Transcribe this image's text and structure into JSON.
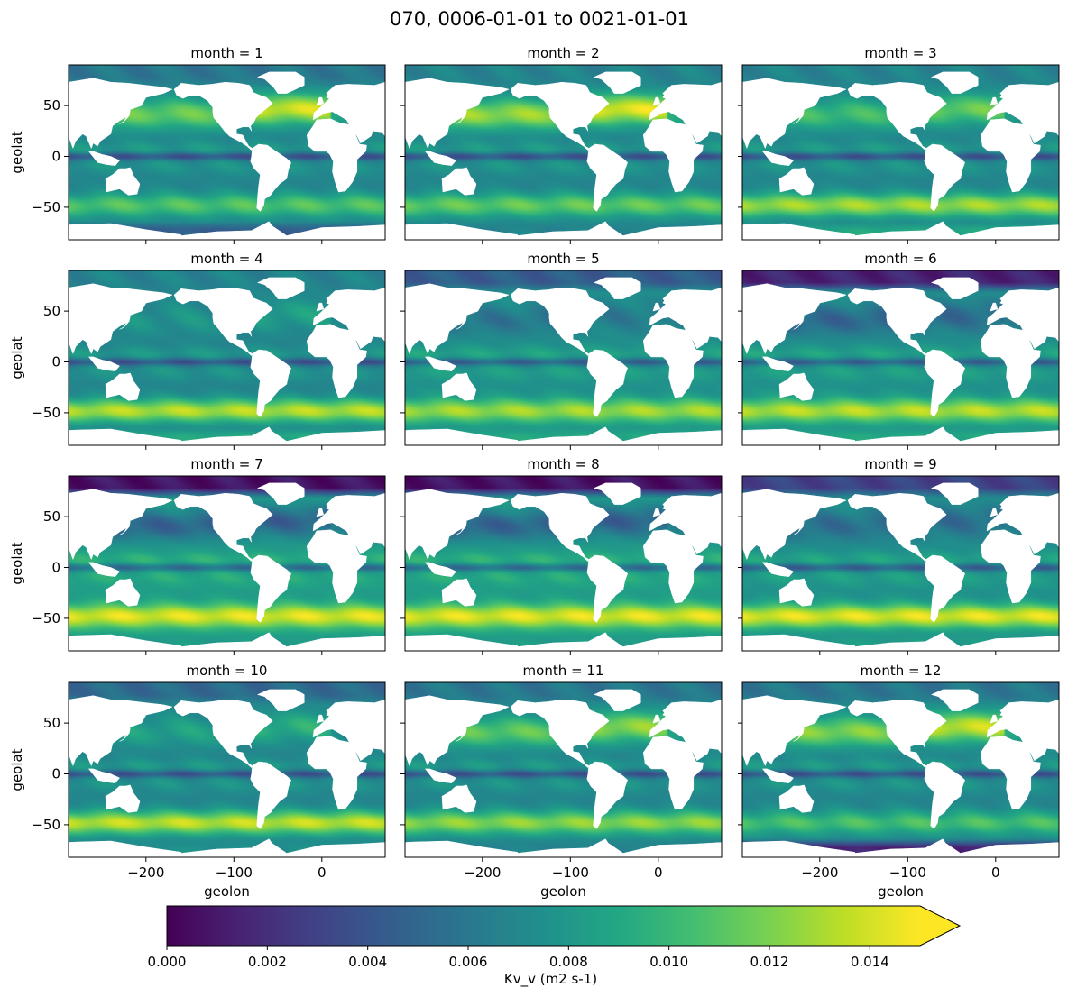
{
  "chart_data": {
    "type": "heatmap",
    "title": "070, 0006-01-01 to 0021-01-01",
    "xlabel": "geolon",
    "ylabel": "geolat",
    "xlim": [
      -288,
      72
    ],
    "ylim": [
      -82,
      90
    ],
    "x_ticks": [
      -200,
      -100,
      0
    ],
    "y_ticks": [
      50,
      0,
      -50
    ],
    "x_tick_labels": [
      "−200",
      "−100",
      "0"
    ],
    "y_tick_labels": [
      "50",
      "0",
      "−50"
    ],
    "panels": [
      {
        "month": 1,
        "label": "month = 1",
        "north_pacific": 0.7,
        "north_atlantic": 0.85,
        "southern_ocean": 0.72,
        "tropics": 0.45,
        "arctic": 0.4,
        "antarctic_margin": 0.3
      },
      {
        "month": 2,
        "label": "month = 2",
        "north_pacific": 0.78,
        "north_atlantic": 0.85,
        "southern_ocean": 0.75,
        "tropics": 0.45,
        "arctic": 0.45,
        "antarctic_margin": 0.45
      },
      {
        "month": 3,
        "label": "month = 3",
        "north_pacific": 0.65,
        "north_atlantic": 0.7,
        "southern_ocean": 0.85,
        "tropics": 0.45,
        "arctic": 0.45,
        "antarctic_margin": 0.6
      },
      {
        "month": 4,
        "label": "month = 4",
        "north_pacific": 0.5,
        "north_atlantic": 0.55,
        "southern_ocean": 0.88,
        "tropics": 0.45,
        "arctic": 0.45,
        "antarctic_margin": 0.6
      },
      {
        "month": 5,
        "label": "month = 5",
        "north_pacific": 0.4,
        "north_atlantic": 0.45,
        "southern_ocean": 0.85,
        "tropics": 0.5,
        "arctic": 0.3,
        "antarctic_margin": 0.6
      },
      {
        "month": 6,
        "label": "month = 6",
        "north_pacific": 0.35,
        "north_atlantic": 0.4,
        "southern_ocean": 0.88,
        "tropics": 0.5,
        "arctic": 0.1,
        "antarctic_margin": 0.6
      },
      {
        "month": 7,
        "label": "month = 7",
        "north_pacific": 0.35,
        "north_atlantic": 0.38,
        "southern_ocean": 0.95,
        "tropics": 0.55,
        "arctic": 0.05,
        "antarctic_margin": 0.55
      },
      {
        "month": 8,
        "label": "month = 8",
        "north_pacific": 0.35,
        "north_atlantic": 0.38,
        "southern_ocean": 0.95,
        "tropics": 0.55,
        "arctic": 0.05,
        "antarctic_margin": 0.55
      },
      {
        "month": 9,
        "label": "month = 9",
        "north_pacific": 0.38,
        "north_atlantic": 0.4,
        "southern_ocean": 0.95,
        "tropics": 0.5,
        "arctic": 0.2,
        "antarctic_margin": 0.55
      },
      {
        "month": 10,
        "label": "month = 10",
        "north_pacific": 0.55,
        "north_atlantic": 0.6,
        "southern_ocean": 0.9,
        "tropics": 0.45,
        "arctic": 0.35,
        "antarctic_margin": 0.5
      },
      {
        "month": 11,
        "label": "month = 11",
        "north_pacific": 0.7,
        "north_atlantic": 0.75,
        "southern_ocean": 0.82,
        "tropics": 0.45,
        "arctic": 0.4,
        "antarctic_margin": 0.45
      },
      {
        "month": 12,
        "label": "month = 12",
        "north_pacific": 0.75,
        "north_atlantic": 0.82,
        "southern_ocean": 0.7,
        "tropics": 0.45,
        "arctic": 0.4,
        "antarctic_margin": 0.1
      }
    ],
    "colorbar": {
      "label": "Kv_v (m2 s-1)",
      "colormap": "viridis",
      "vmin": 0.0,
      "vmax": 0.015,
      "extend": "max",
      "ticks": [
        0.0,
        0.002,
        0.004,
        0.006,
        0.008,
        0.01,
        0.012,
        0.014
      ],
      "tick_labels": [
        "0.000",
        "0.002",
        "0.004",
        "0.006",
        "0.008",
        "0.010",
        "0.012",
        "0.014"
      ]
    }
  }
}
